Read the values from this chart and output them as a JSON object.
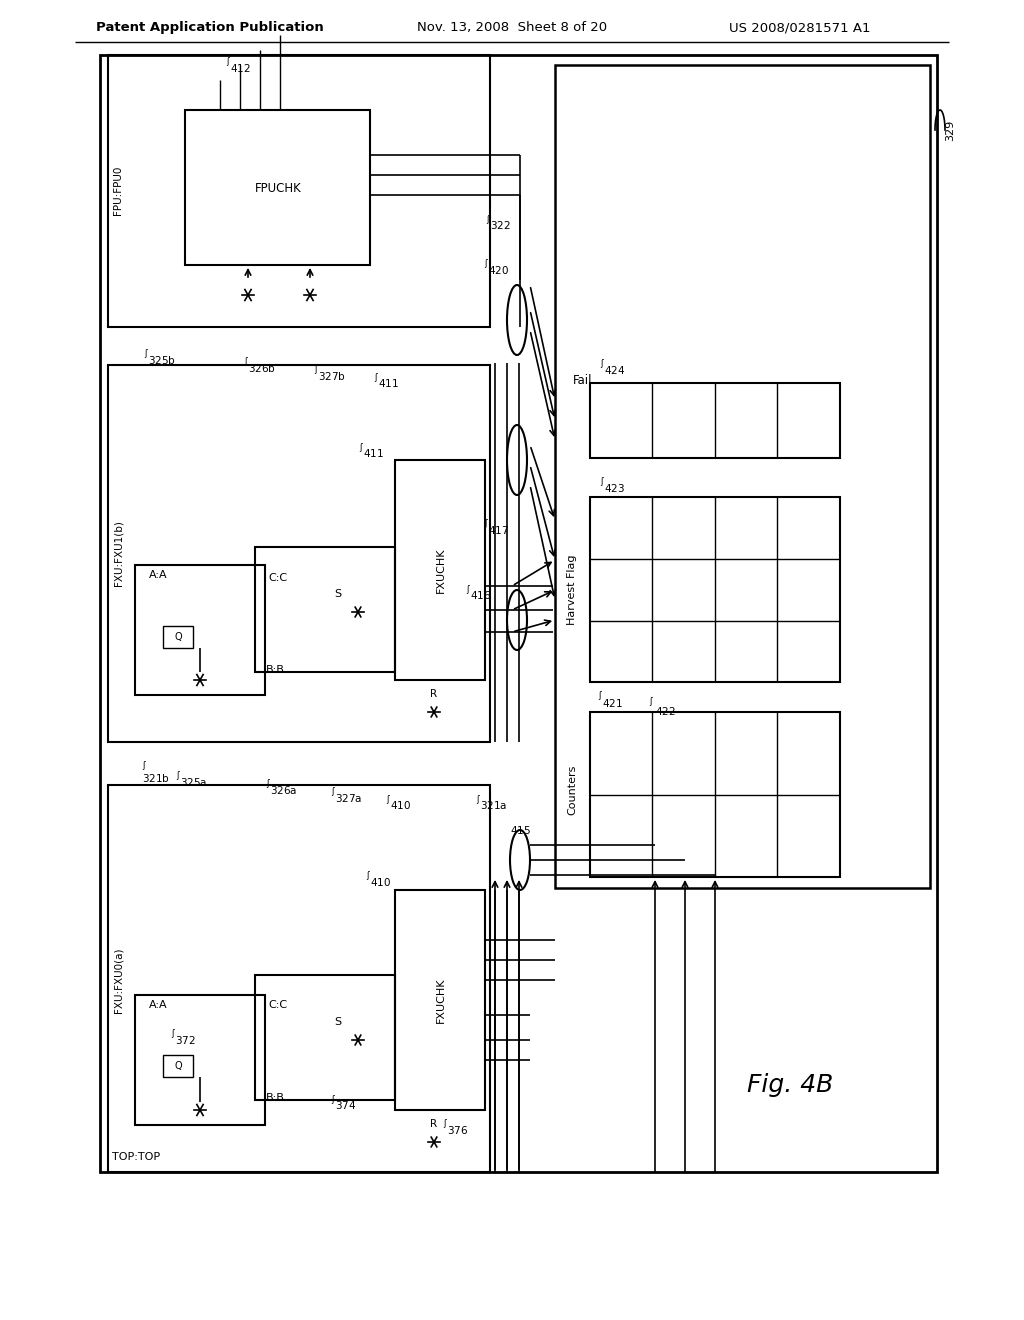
{
  "white": "#ffffff",
  "black": "#000000",
  "bg": "#e8e8e0",
  "header_left": "Patent Application Publication",
  "header_mid": "Nov. 13, 2008  Sheet 8 of 20",
  "header_right": "US 2008/0281571 A1"
}
